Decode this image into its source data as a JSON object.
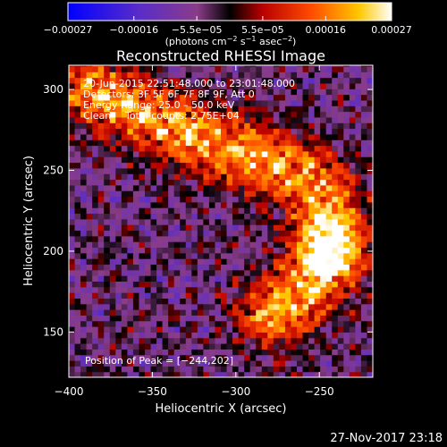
{
  "chart_data": {
    "type": "heatmap",
    "title": "Reconstructed RHESSI Image",
    "xlabel": "Heliocentric X (arcsec)",
    "ylabel": "Heliocentric Y (arcsec)",
    "xlim": [
      -400,
      -218
    ],
    "ylim": [
      122,
      315
    ],
    "x_ticks": [
      -400,
      -350,
      -300,
      -250
    ],
    "x_tick_labels": [
      "−400",
      "−350",
      "−300",
      "−250"
    ],
    "y_ticks": [
      150,
      200,
      250,
      300
    ],
    "y_tick_labels": [
      "150",
      "200",
      "250",
      "300"
    ],
    "colorbar": {
      "range": [
        -0.00027,
        0.00027
      ],
      "ticks": [
        -0.00027,
        -0.00016,
        -5.5e-05,
        5.5e-05,
        0.00016,
        0.00027
      ],
      "tick_labels": [
        "−0.00027",
        "−0.00016",
        "−5.5e−05",
        "5.5e−05",
        "0.00016",
        "0.00027"
      ],
      "unit_base": "(photons cm",
      "unit_exp1": "−2",
      "unit_mid1": " s",
      "unit_exp2": "−1",
      "unit_mid2": " asec",
      "unit_exp3": "−2",
      "unit_end": ")"
    },
    "annotations": {
      "time_range": "20-Jun-2015 22:51:48.000 to 23:01:48.000",
      "detectors": "Detectors: 3F 5F 6F 7F 8F 9F, Att 0",
      "energy": "Energy Range: 25.0 – 50.0 keV",
      "method": "Clean",
      "counts": "Total counts: 2.75E+04",
      "peak": "Position of Peak = [−244,202]"
    },
    "peak": [
      -244,
      202
    ],
    "emission_arc": [
      {
        "x": -385,
        "y": 300
      },
      {
        "x": -368,
        "y": 292
      },
      {
        "x": -350,
        "y": 283
      },
      {
        "x": -332,
        "y": 275
      },
      {
        "x": -314,
        "y": 268
      },
      {
        "x": -296,
        "y": 261
      },
      {
        "x": -278,
        "y": 254
      },
      {
        "x": -262,
        "y": 248
      },
      {
        "x": -250,
        "y": 238
      },
      {
        "x": -245,
        "y": 224
      },
      {
        "x": -244,
        "y": 208
      },
      {
        "x": -247,
        "y": 192
      },
      {
        "x": -255,
        "y": 180
      },
      {
        "x": -266,
        "y": 170
      },
      {
        "x": -278,
        "y": 162
      }
    ]
  },
  "footer": {
    "date": "27-Nov-2017 23:18"
  }
}
